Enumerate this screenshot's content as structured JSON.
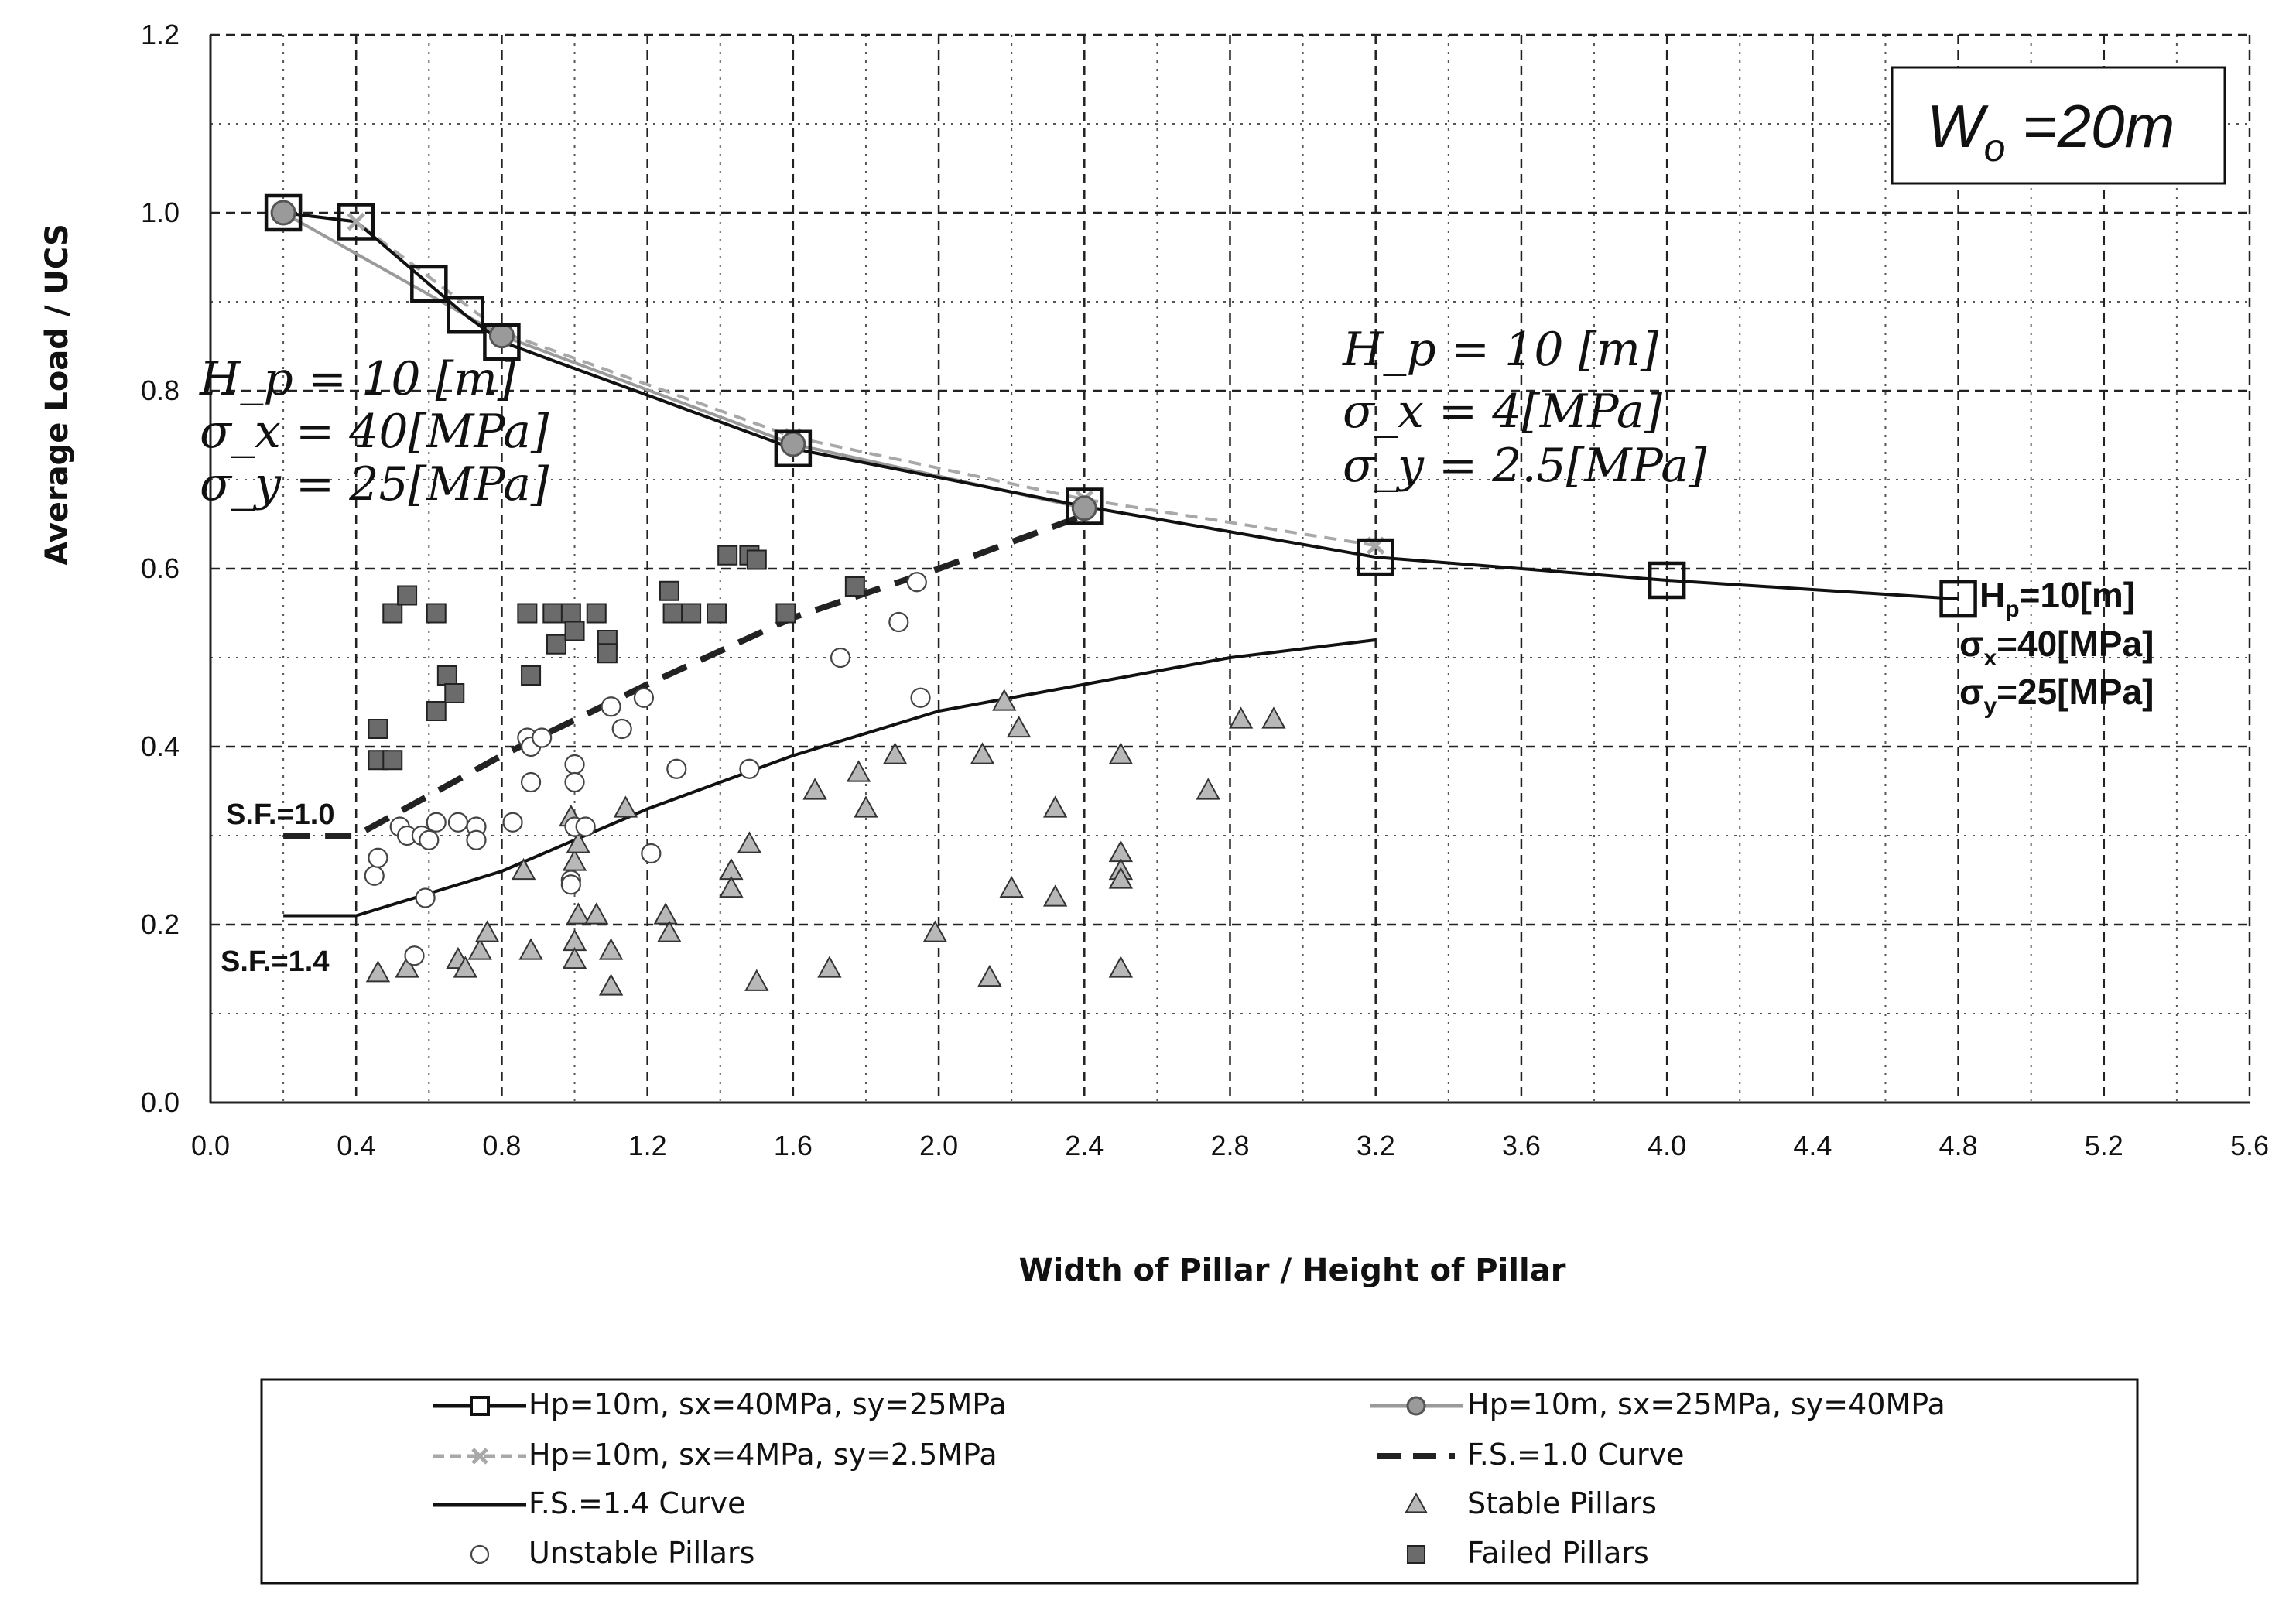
{
  "chart_data": {
    "type": "scatter",
    "title": "",
    "xlabel": "Width of Pillar / Height of Pillar",
    "ylabel": "Average Load / UCS",
    "xlim": [
      0.0,
      5.6
    ],
    "ylim": [
      0.0,
      1.2
    ],
    "xticks": [
      "0.0",
      "0.4",
      "0.8",
      "1.2",
      "1.6",
      "2.0",
      "2.4",
      "2.8",
      "3.2",
      "3.6",
      "4.0",
      "4.4",
      "4.8",
      "5.2",
      "5.6"
    ],
    "yticks": [
      "0.0",
      "0.2",
      "0.4",
      "0.6",
      "0.8",
      "1.0",
      "1.2"
    ],
    "grid": true,
    "series_lines": [
      {
        "name": "Hp=10m, sx=40MPa, sy=25MPa",
        "style": "solid",
        "color": "#111111",
        "marker": "square",
        "x": [
          0.2,
          0.4,
          0.6,
          0.7,
          0.8,
          1.6,
          2.4,
          3.2,
          4.0,
          4.8
        ],
        "y": [
          1.0,
          0.99,
          0.92,
          0.885,
          0.855,
          0.735,
          0.67,
          0.613,
          0.587,
          0.566
        ]
      },
      {
        "name": "Hp=10m, sx=25MPa, sy=40MPa",
        "style": "solid",
        "color": "#9a9a9a",
        "marker": "circle",
        "x": [
          0.2,
          0.8,
          1.6,
          2.4
        ],
        "y": [
          1.0,
          0.862,
          0.74,
          0.668
        ]
      },
      {
        "name": "Hp=10m, sx=4MPa, sy=2.5MPa",
        "style": "dashed",
        "color": "#a8a8a8",
        "marker": "x",
        "x": [
          0.2,
          0.4,
          0.8,
          1.6,
          2.4,
          3.2
        ],
        "y": [
          1.0,
          0.99,
          0.866,
          0.748,
          0.678,
          0.626
        ]
      },
      {
        "name": "F.S.=1.0 Curve",
        "style": "heavy-dash",
        "color": "#222222",
        "marker": "none",
        "x": [
          0.2,
          0.4,
          0.8,
          1.2,
          1.6,
          2.0,
          2.4
        ],
        "y": [
          0.3,
          0.3,
          0.39,
          0.47,
          0.545,
          0.6,
          0.66
        ]
      },
      {
        "name": "F.S.=1.4 Curve",
        "style": "solid",
        "color": "#111111",
        "marker": "none",
        "x": [
          0.2,
          0.4,
          0.8,
          1.2,
          1.6,
          2.0,
          2.4,
          2.8,
          3.2
        ],
        "y": [
          0.21,
          0.21,
          0.26,
          0.33,
          0.39,
          0.44,
          0.47,
          0.5,
          0.52
        ]
      }
    ],
    "scatter": {
      "stable": {
        "name": "Stable Pillars",
        "points": [
          [
            0.46,
            0.145
          ],
          [
            0.54,
            0.15
          ],
          [
            0.68,
            0.16
          ],
          [
            0.7,
            0.15
          ],
          [
            0.74,
            0.17
          ],
          [
            0.76,
            0.19
          ],
          [
            0.86,
            0.26
          ],
          [
            0.88,
            0.17
          ],
          [
            0.99,
            0.32
          ],
          [
            1.0,
            0.27
          ],
          [
            1.0,
            0.18
          ],
          [
            1.0,
            0.16
          ],
          [
            1.01,
            0.21
          ],
          [
            1.01,
            0.29
          ],
          [
            1.06,
            0.21
          ],
          [
            1.1,
            0.17
          ],
          [
            1.1,
            0.13
          ],
          [
            1.14,
            0.33
          ],
          [
            1.25,
            0.21
          ],
          [
            1.26,
            0.19
          ],
          [
            1.43,
            0.26
          ],
          [
            1.43,
            0.24
          ],
          [
            1.48,
            0.29
          ],
          [
            1.5,
            0.135
          ],
          [
            1.66,
            0.35
          ],
          [
            1.7,
            0.15
          ],
          [
            1.78,
            0.37
          ],
          [
            1.8,
            0.33
          ],
          [
            1.88,
            0.39
          ],
          [
            1.99,
            0.19
          ],
          [
            2.12,
            0.39
          ],
          [
            2.14,
            0.14
          ],
          [
            2.18,
            0.45
          ],
          [
            2.2,
            0.24
          ],
          [
            2.22,
            0.42
          ],
          [
            2.32,
            0.33
          ],
          [
            2.32,
            0.23
          ],
          [
            2.5,
            0.39
          ],
          [
            2.5,
            0.28
          ],
          [
            2.5,
            0.26
          ],
          [
            2.5,
            0.25
          ],
          [
            2.5,
            0.15
          ],
          [
            2.74,
            0.35
          ],
          [
            2.83,
            0.43
          ],
          [
            2.92,
            0.43
          ]
        ]
      },
      "unstable": {
        "name": "Unstable Pillars",
        "points": [
          [
            0.45,
            0.255
          ],
          [
            0.46,
            0.275
          ],
          [
            0.52,
            0.31
          ],
          [
            0.54,
            0.3
          ],
          [
            0.56,
            0.165
          ],
          [
            0.58,
            0.3
          ],
          [
            0.59,
            0.23
          ],
          [
            0.6,
            0.295
          ],
          [
            0.62,
            0.315
          ],
          [
            0.68,
            0.315
          ],
          [
            0.73,
            0.31
          ],
          [
            0.73,
            0.295
          ],
          [
            0.83,
            0.315
          ],
          [
            0.87,
            0.41
          ],
          [
            0.88,
            0.4
          ],
          [
            0.88,
            0.36
          ],
          [
            0.91,
            0.41
          ],
          [
            0.99,
            0.25
          ],
          [
            0.99,
            0.245
          ],
          [
            1.0,
            0.38
          ],
          [
            1.0,
            0.36
          ],
          [
            1.0,
            0.31
          ],
          [
            1.03,
            0.31
          ],
          [
            1.1,
            0.445
          ],
          [
            1.13,
            0.42
          ],
          [
            1.19,
            0.455
          ],
          [
            1.21,
            0.28
          ],
          [
            1.28,
            0.375
          ],
          [
            1.48,
            0.375
          ],
          [
            1.73,
            0.5
          ],
          [
            1.89,
            0.54
          ],
          [
            1.94,
            0.585
          ],
          [
            1.95,
            0.455
          ]
        ]
      },
      "failed": {
        "name": "Failed Pillars",
        "points": [
          [
            0.46,
            0.385
          ],
          [
            0.46,
            0.42
          ],
          [
            0.5,
            0.385
          ],
          [
            0.5,
            0.55
          ],
          [
            0.54,
            0.57
          ],
          [
            0.62,
            0.55
          ],
          [
            0.62,
            0.44
          ],
          [
            0.65,
            0.48
          ],
          [
            0.67,
            0.46
          ],
          [
            0.87,
            0.55
          ],
          [
            0.88,
            0.48
          ],
          [
            0.94,
            0.55
          ],
          [
            0.95,
            0.515
          ],
          [
            0.99,
            0.55
          ],
          [
            1.0,
            0.53
          ],
          [
            1.06,
            0.55
          ],
          [
            1.09,
            0.52
          ],
          [
            1.09,
            0.505
          ],
          [
            1.26,
            0.575
          ],
          [
            1.27,
            0.55
          ],
          [
            1.32,
            0.55
          ],
          [
            1.39,
            0.55
          ],
          [
            1.42,
            0.615
          ],
          [
            1.48,
            0.615
          ],
          [
            1.5,
            0.61
          ],
          [
            1.58,
            0.55
          ],
          [
            1.77,
            0.58
          ]
        ]
      }
    },
    "annotations": {
      "box_label": {
        "text_main": "W",
        "sub": "o",
        "rest": " =20m"
      },
      "left_note": [
        "H_p = 10 [m]",
        "σ_x = 40[MPa]",
        "σ_y = 25[MPa]"
      ],
      "mid_note": [
        "H_p = 10 [m]",
        "σ_x = 4[MPa]",
        "σ_y = 2.5[MPa]"
      ],
      "right_note": [
        {
          "main": "H",
          "sub": "p",
          "rest": "=10[m]"
        },
        {
          "main": "σ",
          "sub": "x",
          "rest": "=40[MPa]"
        },
        {
          "main": "σ",
          "sub": "y",
          "rest": "=25[MPa]"
        }
      ],
      "sf10": "S.F.=1.0",
      "sf14": "S.F.=1.4"
    },
    "legend": [
      {
        "label": "Hp=10m,  sx=40MPa,  sy=25MPa",
        "kind": "line-square"
      },
      {
        "label": "Hp=10m,  sx=25MPa,  sy=40MPa",
        "kind": "line-circle"
      },
      {
        "label": "Hp=10m,  sx=4MPa,  sy=2.5MPa",
        "kind": "dash-x"
      },
      {
        "label": "F.S.=1.0 Curve",
        "kind": "heavy-dash"
      },
      {
        "label": "F.S.=1.4 Curve",
        "kind": "line"
      },
      {
        "label": "Stable Pillars",
        "kind": "triangle"
      },
      {
        "label": "Unstable Pillars",
        "kind": "circle"
      },
      {
        "label": "Failed Pillars",
        "kind": "filled-square"
      }
    ]
  }
}
